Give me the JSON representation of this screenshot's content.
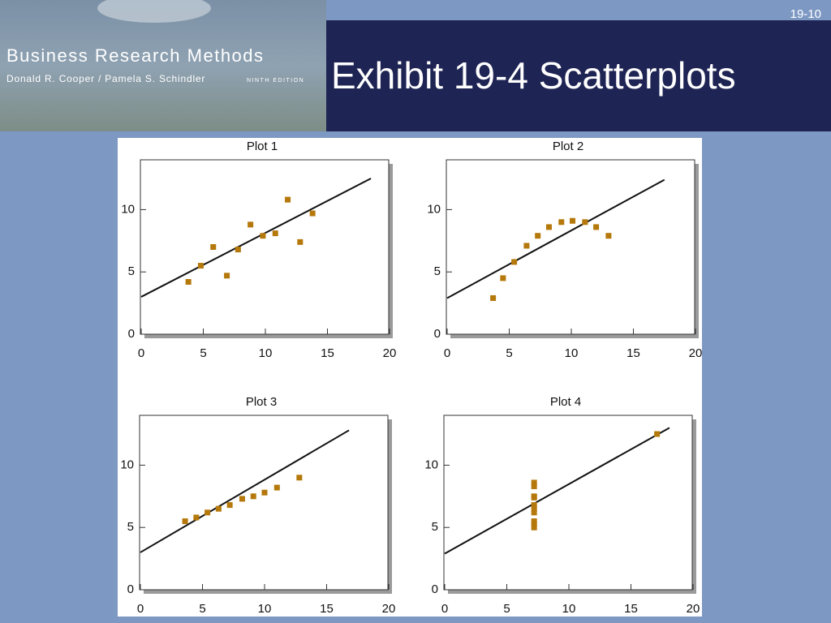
{
  "header": {
    "slide_number": "19-10",
    "title": "Exhibit 19-4 Scatterplots",
    "banner": {
      "book_title": "Business Research Methods",
      "authors": "Donald R. Cooper / Pamela S. Schindler",
      "edition": "NINTH EDITION"
    }
  },
  "chart_data": [
    {
      "type": "scatter",
      "title": "Plot 1",
      "color": "#b5780a",
      "line_color": "#111111",
      "x": [
        3.8,
        4.8,
        5.8,
        6.9,
        7.8,
        8.8,
        9.8,
        10.8,
        11.8,
        12.8,
        13.8
      ],
      "values": [
        4.2,
        5.5,
        7.0,
        4.7,
        6.8,
        8.8,
        7.9,
        8.1,
        10.8,
        7.4,
        9.7
      ],
      "fit_line": {
        "x": [
          0,
          18.5
        ],
        "values": [
          3.0,
          12.5
        ]
      },
      "xlim": [
        0,
        20
      ],
      "ylim": [
        0,
        14
      ],
      "xticks": [
        0,
        5,
        10,
        15,
        20
      ],
      "yticks": [
        0,
        5,
        10
      ]
    },
    {
      "type": "scatter",
      "title": "Plot 2",
      "color": "#b5780a",
      "line_color": "#111111",
      "x": [
        3.7,
        4.5,
        5.4,
        6.4,
        7.3,
        8.2,
        9.2,
        10.1,
        11.1,
        12.0,
        13.0
      ],
      "values": [
        2.9,
        4.5,
        5.8,
        7.1,
        7.9,
        8.6,
        9.0,
        9.1,
        9.0,
        8.6,
        7.9
      ],
      "fit_line": {
        "x": [
          0,
          17.5
        ],
        "values": [
          2.9,
          12.4
        ]
      },
      "xlim": [
        0,
        20
      ],
      "ylim": [
        0,
        14
      ],
      "xticks": [
        0,
        5,
        10,
        15,
        20
      ],
      "yticks": [
        0,
        5,
        10
      ]
    },
    {
      "type": "scatter",
      "title": "Plot 3",
      "color": "#b5780a",
      "line_color": "#111111",
      "x": [
        3.6,
        4.5,
        5.4,
        6.3,
        7.2,
        8.2,
        9.1,
        10.0,
        11.0,
        12.8
      ],
      "values": [
        5.5,
        5.8,
        6.2,
        6.5,
        6.8,
        7.3,
        7.5,
        7.8,
        8.2,
        9.0
      ],
      "fit_line": {
        "x": [
          0,
          16.8
        ],
        "values": [
          3.0,
          12.8
        ]
      },
      "xlim": [
        0,
        20
      ],
      "ylim": [
        0,
        14
      ],
      "xticks": [
        0,
        5,
        10,
        15,
        20
      ],
      "yticks": [
        0,
        5,
        10
      ]
    },
    {
      "type": "scatter",
      "title": "Plot 4",
      "color": "#b5780a",
      "line_color": "#111111",
      "x": [
        7.2,
        7.2,
        7.2,
        7.2,
        7.2,
        7.2,
        7.2,
        7.2,
        7.2,
        7.2,
        17.1
      ],
      "values": [
        8.6,
        8.3,
        7.5,
        7.4,
        6.8,
        6.5,
        6.2,
        5.5,
        5.3,
        5.0,
        12.5
      ],
      "fit_line": {
        "x": [
          0,
          18.1
        ],
        "values": [
          2.9,
          13.0
        ]
      },
      "xlim": [
        0,
        20
      ],
      "ylim": [
        0,
        14
      ],
      "xticks": [
        0,
        5,
        10,
        15,
        20
      ],
      "yticks": [
        0,
        5,
        10
      ]
    }
  ]
}
